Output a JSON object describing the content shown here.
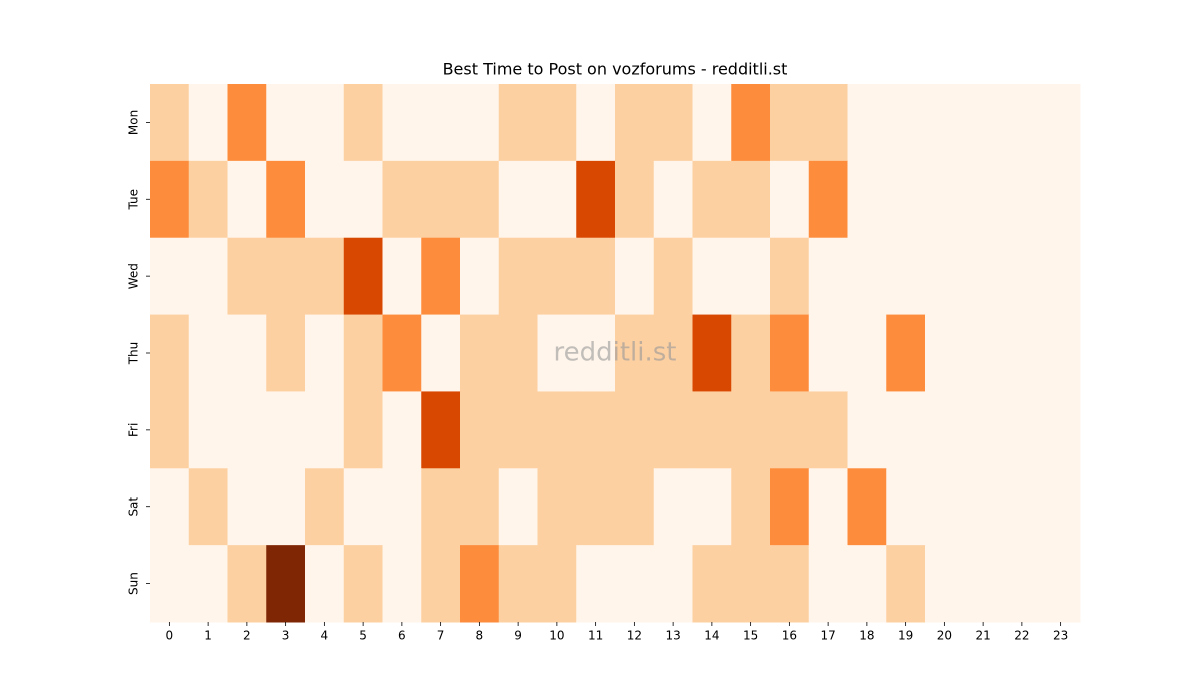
{
  "chart_data": {
    "type": "heatmap",
    "title": "Best Time to Post on vozforums - redditli.st",
    "watermark": "redditli.st",
    "x": [
      0,
      1,
      2,
      3,
      4,
      5,
      6,
      7,
      8,
      9,
      10,
      11,
      12,
      13,
      14,
      15,
      16,
      17,
      18,
      19,
      20,
      21,
      22,
      23
    ],
    "y": [
      "Mon",
      "Tue",
      "Wed",
      "Thu",
      "Fri",
      "Sat",
      "Sun"
    ],
    "values": [
      [
        1,
        0,
        2,
        0,
        0,
        1,
        0,
        0,
        0,
        1,
        1,
        0,
        1,
        1,
        0,
        2,
        1,
        1,
        0,
        0,
        0,
        0,
        0,
        0
      ],
      [
        2,
        1,
        0,
        2,
        0,
        0,
        1,
        1,
        1,
        0,
        0,
        3,
        1,
        0,
        1,
        1,
        0,
        2,
        0,
        0,
        0,
        0,
        0,
        0
      ],
      [
        0,
        0,
        1,
        1,
        1,
        3,
        0,
        2,
        0,
        1,
        1,
        1,
        0,
        1,
        0,
        0,
        1,
        0,
        0,
        0,
        0,
        0,
        0,
        0
      ],
      [
        1,
        0,
        0,
        1,
        0,
        1,
        2,
        0,
        1,
        1,
        0,
        0,
        1,
        1,
        3,
        1,
        2,
        0,
        0,
        2,
        0,
        0,
        0,
        0
      ],
      [
        1,
        0,
        0,
        0,
        0,
        1,
        0,
        3,
        1,
        1,
        1,
        1,
        1,
        1,
        1,
        1,
        1,
        1,
        0,
        0,
        0,
        0,
        0,
        0
      ],
      [
        0,
        1,
        0,
        0,
        1,
        0,
        0,
        1,
        1,
        0,
        1,
        1,
        1,
        0,
        0,
        1,
        2,
        0,
        2,
        0,
        0,
        0,
        0,
        0
      ],
      [
        0,
        0,
        1,
        4,
        0,
        1,
        0,
        1,
        2,
        1,
        1,
        0,
        0,
        0,
        1,
        1,
        1,
        0,
        0,
        1,
        0,
        0,
        0,
        0
      ]
    ],
    "colors": [
      "#fff5eb",
      "#fdd0a2",
      "#fd8d3c",
      "#d94801",
      "#7f2704"
    ]
  }
}
